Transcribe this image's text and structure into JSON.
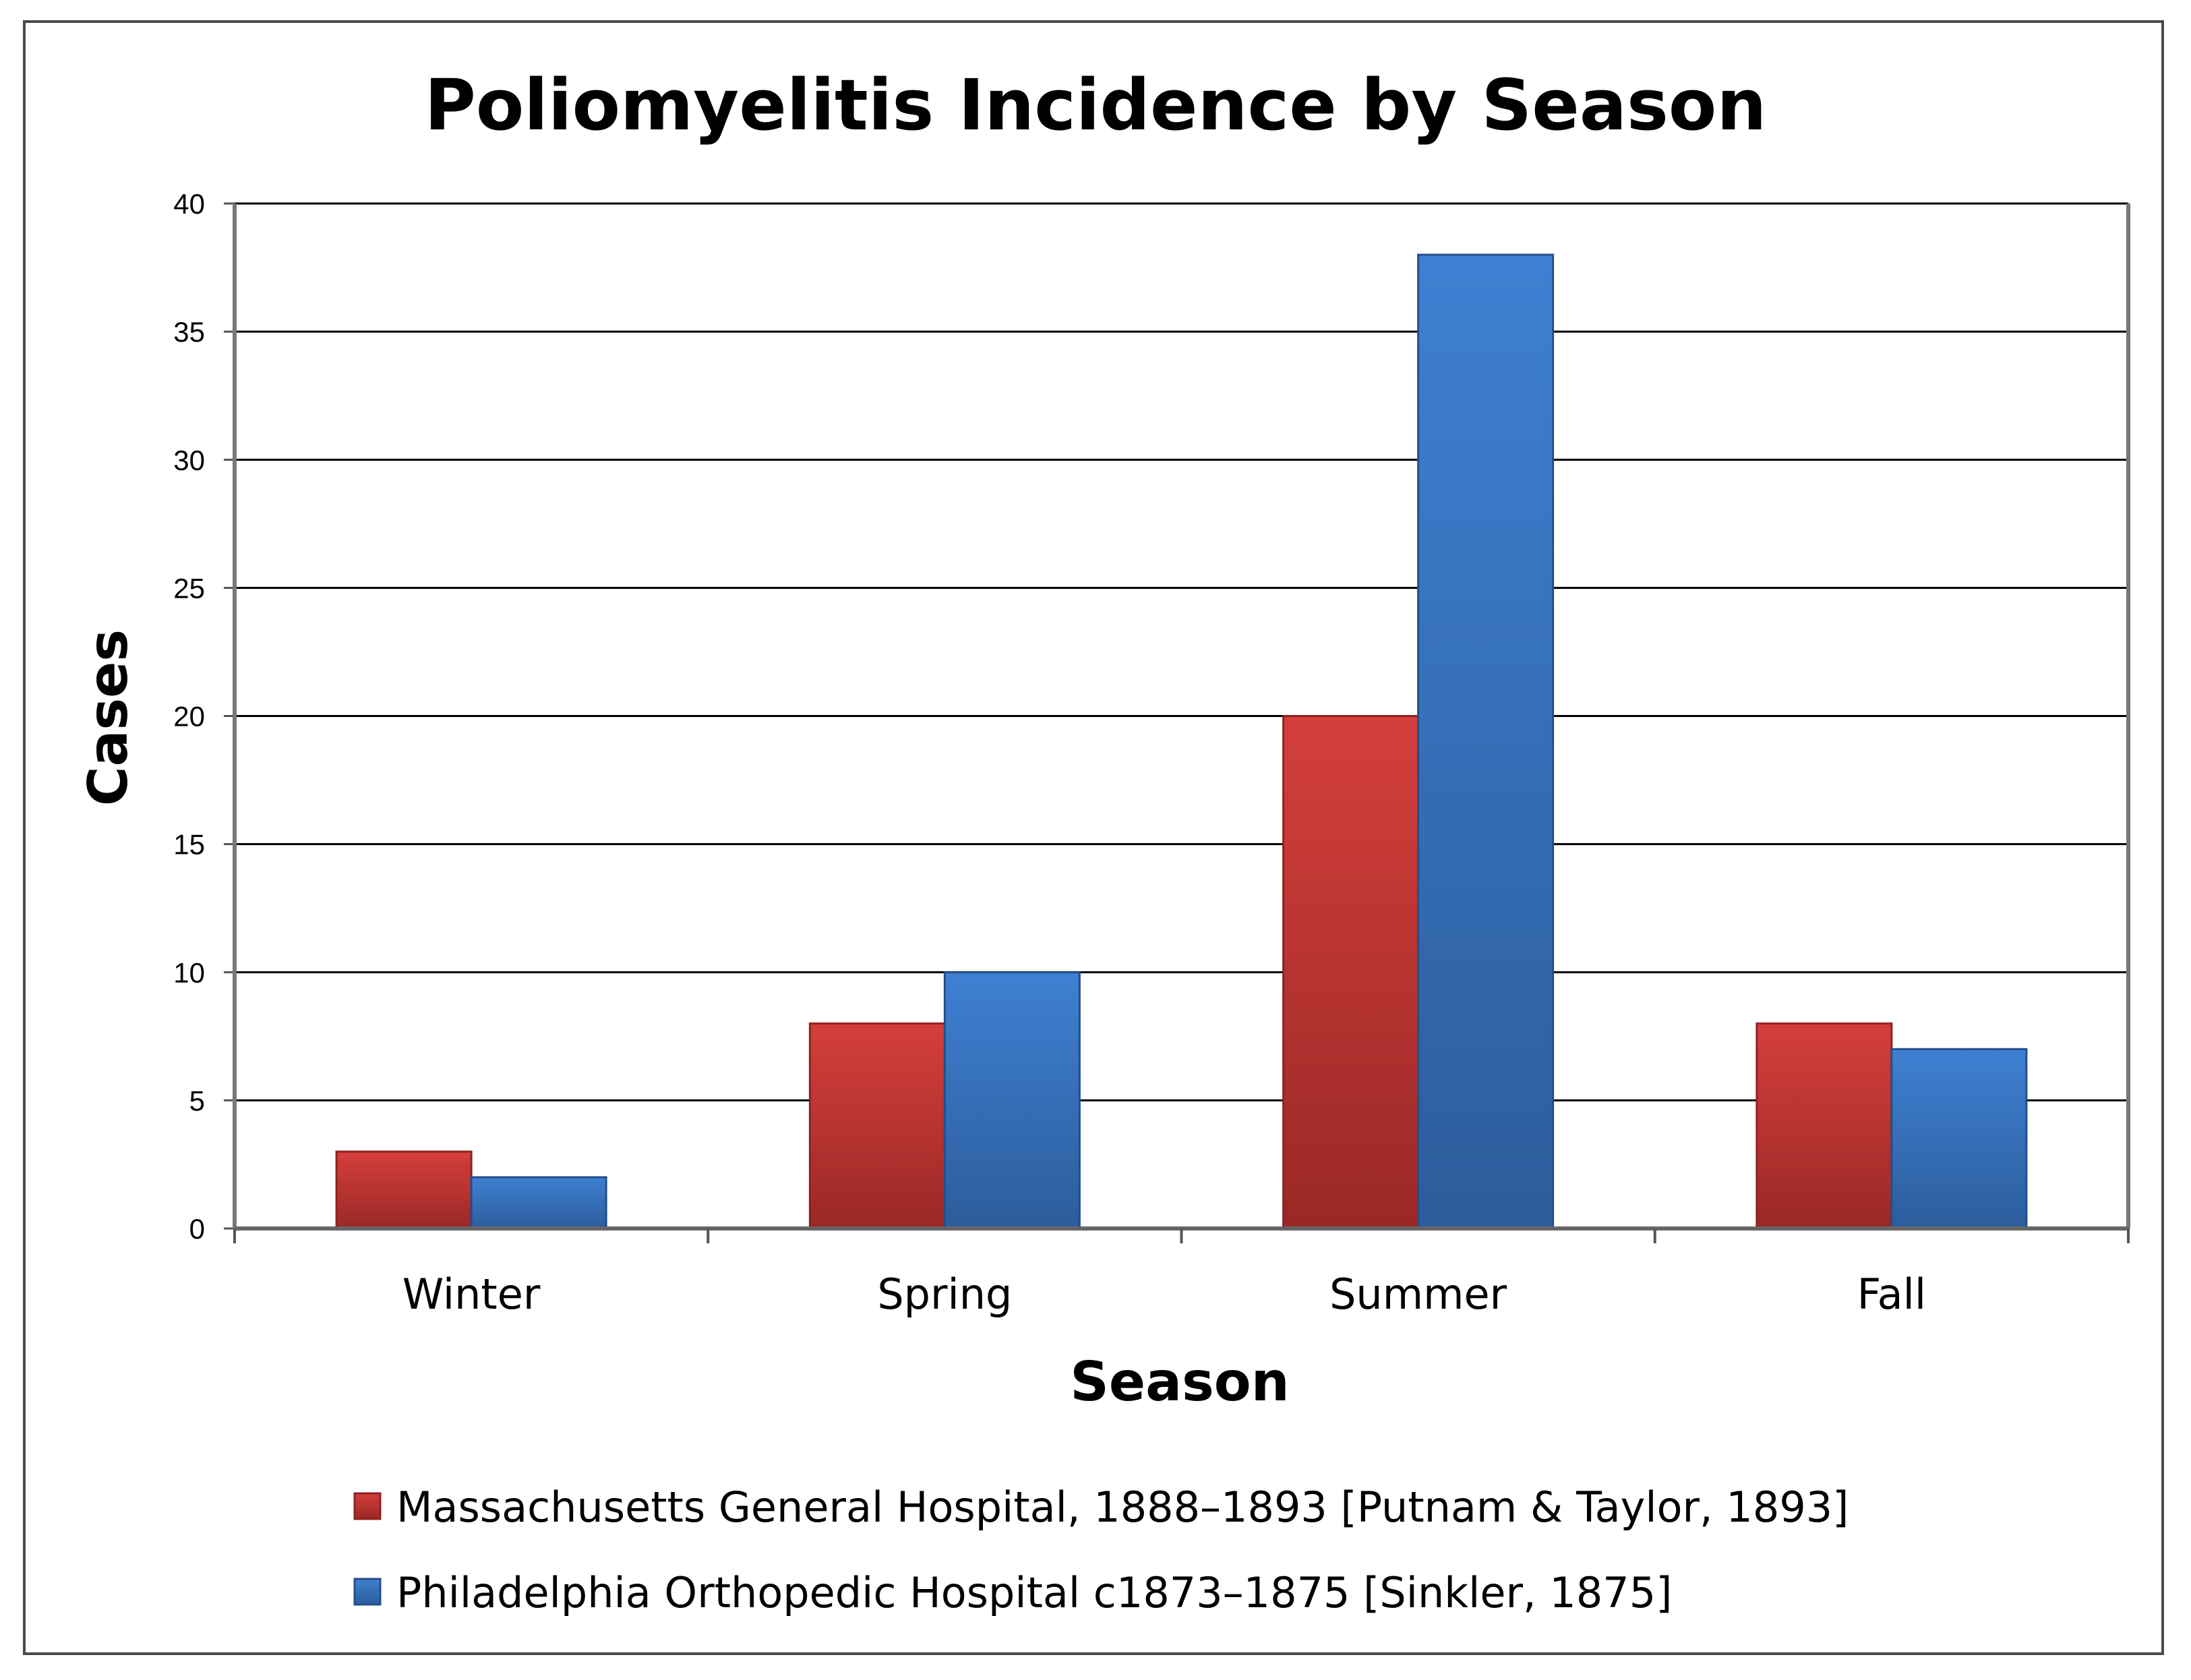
{
  "chart_data": {
    "type": "bar",
    "title": "Poliomyelitis Incidence by Season",
    "xlabel": "Season",
    "ylabel": "Cases",
    "ylim": [
      0,
      40
    ],
    "yticks": [
      0,
      5,
      10,
      15,
      20,
      25,
      30,
      35,
      40
    ],
    "grid": true,
    "legend_position": "bottom",
    "categories": [
      "Winter",
      "Spring",
      "Summer",
      "Fall"
    ],
    "series": [
      {
        "name": "Massachusetts General Hospital, 1888–1893 [Putnam & Taylor, 1893]",
        "color": "#c0302e",
        "values": [
          3,
          8,
          20,
          8
        ]
      },
      {
        "name": "Philadelphia Orthopedic Hospital c1873–1875 [Sinkler, 1875]",
        "color": "#2f6fbf",
        "values": [
          2,
          10,
          38,
          7
        ]
      }
    ]
  }
}
